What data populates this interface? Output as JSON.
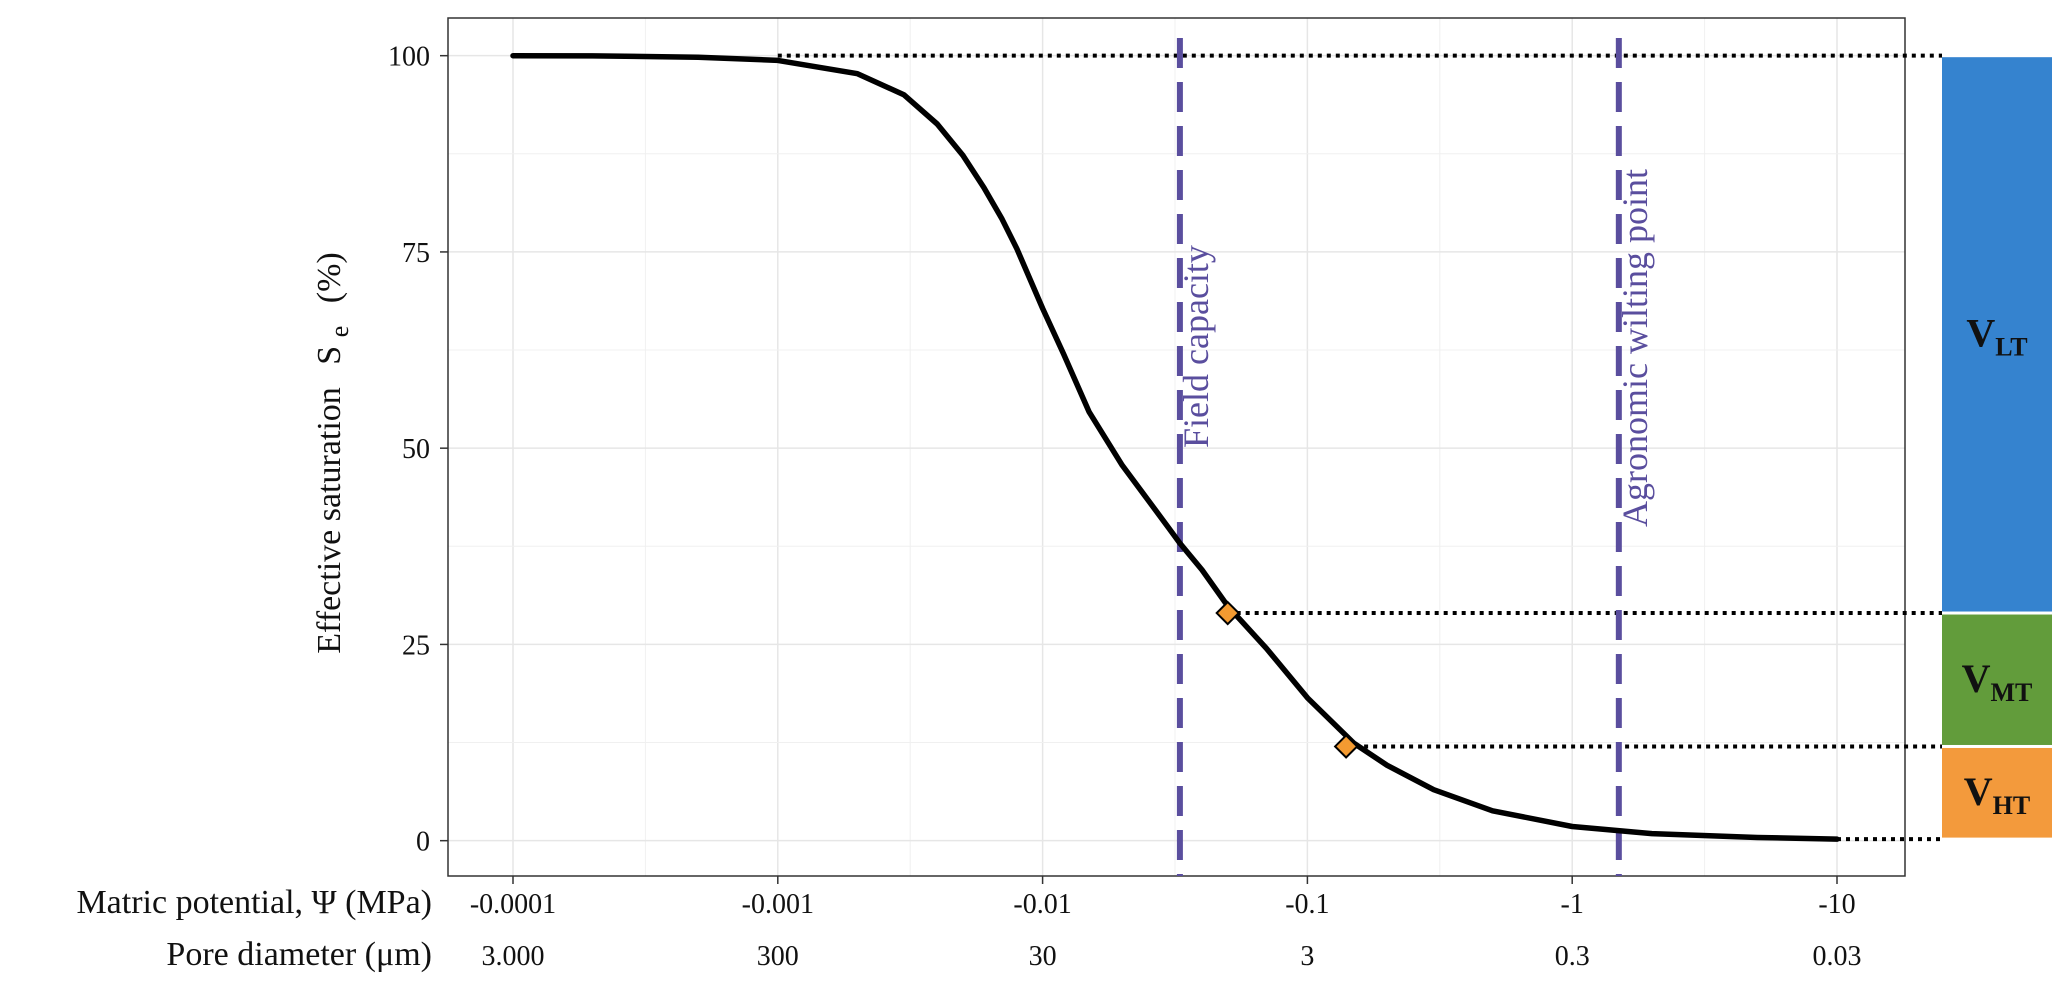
{
  "chart_data": {
    "type": "line",
    "xlabel": "Matric potential, Ψ (MPa)",
    "xlabel_secondary": "Pore diameter (μm)",
    "ylabel": "Effective saturation",
    "ylabel_symbol": "S",
    "ylabel_symbol_sub": "e",
    "ylabel_unit": "(%)",
    "x_scale": "log",
    "x_ticks": [
      {
        "value": -0.0001,
        "label": "-0.0001",
        "pore": "3.000"
      },
      {
        "value": -0.001,
        "label": "-0.001",
        "pore": "300"
      },
      {
        "value": -0.01,
        "label": "-0.01",
        "pore": "30"
      },
      {
        "value": -0.1,
        "label": "-0.1",
        "pore": "3"
      },
      {
        "value": -1,
        "label": "-1",
        "pore": "0.3"
      },
      {
        "value": -10,
        "label": "-10",
        "pore": "0.03"
      }
    ],
    "y_ticks": [
      {
        "value": 0,
        "label": "0"
      },
      {
        "value": 25,
        "label": "25"
      },
      {
        "value": 50,
        "label": "50"
      },
      {
        "value": 75,
        "label": "75"
      },
      {
        "value": 100,
        "label": "100"
      }
    ],
    "ylim": [
      -4.5,
      104.8
    ],
    "grid": true,
    "series": [
      {
        "color": "#000000",
        "x": [
          -0.0001,
          -0.0002,
          -0.0005,
          -0.001,
          -0.002,
          -0.003,
          -0.004,
          -0.005,
          -0.006,
          -0.007,
          -0.008,
          -0.01,
          -0.012,
          -0.015,
          -0.02,
          -0.025,
          -0.03,
          -0.033,
          -0.04,
          -0.05,
          -0.07,
          -0.1,
          -0.15,
          -0.2,
          -0.3,
          -0.5,
          -1,
          -2,
          -5,
          -10
        ],
        "y": [
          100,
          99.97,
          99.8,
          99.4,
          97.7,
          95,
          91.3,
          87.3,
          83.2,
          79.3,
          75.4,
          67.8,
          62,
          54.6,
          47.8,
          43.4,
          39.8,
          37.9,
          34.5,
          29.9,
          24.5,
          18.2,
          12.4,
          9.6,
          6.5,
          3.8,
          1.8,
          0.9,
          0.4,
          0.2
        ]
      }
    ],
    "vlines": [
      {
        "x": -0.033,
        "label": "Field capacity",
        "color": "#5a4e9e"
      },
      {
        "x": -1.5,
        "label": "Agronomic wilting point",
        "color": "#5a4e9e"
      }
    ],
    "markers": [
      {
        "x": -0.05,
        "y": 29,
        "color": "#f39a31"
      },
      {
        "x": -0.14,
        "y": 12,
        "color": "#f39a31"
      }
    ],
    "dotted_levels": [
      {
        "from_x": -0.001,
        "y": 100
      },
      {
        "from_x": -0.05,
        "y": 29
      },
      {
        "from_x": -0.14,
        "y": 12
      },
      {
        "from_x": -10,
        "y": 0.2
      }
    ],
    "volume_segments": [
      {
        "label": "V",
        "sub": "LT",
        "y_from": 29,
        "y_to": 100,
        "color": "#3583cf"
      },
      {
        "label": "V",
        "sub": "MT",
        "y_from": 12,
        "y_to": 29,
        "color": "#629c3b"
      },
      {
        "label": "V",
        "sub": "HT",
        "y_from": 0.2,
        "y_to": 12,
        "color": "#f39a3c"
      }
    ]
  }
}
